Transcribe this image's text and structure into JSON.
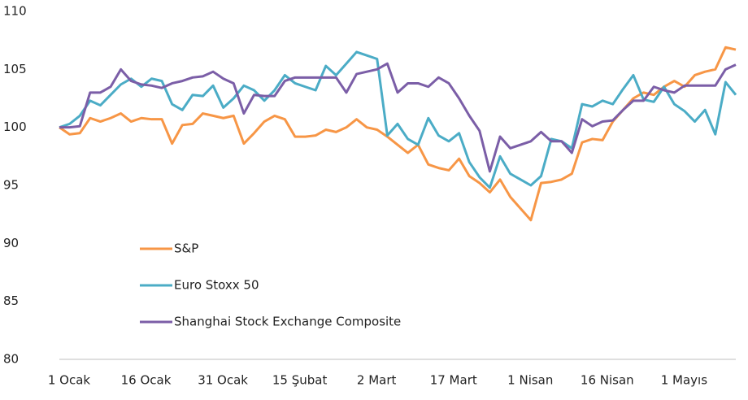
{
  "chart_data": {
    "type": "line",
    "x": [
      0,
      2,
      4,
      6,
      8,
      10,
      12,
      14,
      16,
      18,
      20,
      22,
      24,
      26,
      28,
      30,
      32,
      34,
      36,
      38,
      40,
      42,
      44,
      46,
      48,
      50,
      52,
      54,
      56,
      58,
      60,
      62,
      64,
      66,
      68,
      70,
      72,
      74,
      76,
      78,
      80,
      82,
      84,
      86,
      88,
      90,
      92,
      94,
      96,
      98,
      100,
      102,
      104,
      106,
      108,
      110,
      112,
      114,
      116,
      118,
      120,
      122,
      124,
      126,
      128,
      130,
      132
    ],
    "xlim": [
      0,
      132
    ],
    "xticks": [
      {
        "value": 0,
        "label": "1 Ocak"
      },
      {
        "value": 15,
        "label": "16 Ocak"
      },
      {
        "value": 30,
        "label": "31 Ocak"
      },
      {
        "value": 45,
        "label": "15 Şubat"
      },
      {
        "value": 60,
        "label": "2 Mart"
      },
      {
        "value": 75,
        "label": "17 Mart"
      },
      {
        "value": 90,
        "label": "1 Nisan"
      },
      {
        "value": 105,
        "label": "16 Nisan"
      },
      {
        "value": 120,
        "label": "1 Mayıs"
      }
    ],
    "ylim": [
      80,
      110
    ],
    "yticks": [
      80,
      85,
      90,
      95,
      100,
      105,
      110
    ],
    "legend": "lower left",
    "series": [
      {
        "name": "S&P",
        "color": "#f79646",
        "values": [
          100,
          99.4,
          99.5,
          100.8,
          100.5,
          100.8,
          101.2,
          100.5,
          100.8,
          100.7,
          100.7,
          98.6,
          100.2,
          100.3,
          101.2,
          101,
          100.8,
          101,
          98.6,
          99.5,
          100.5,
          101,
          100.7,
          99.2,
          99.2,
          99.3,
          99.8,
          99.6,
          100,
          100.7,
          100,
          99.8,
          99.2,
          98.5,
          97.8,
          98.5,
          96.8,
          96.5,
          96.3,
          97.3,
          95.8,
          95.2,
          94.4,
          95.5,
          94,
          93,
          92,
          95.2,
          95.3,
          95.5,
          96,
          98.7,
          99,
          98.9,
          100.5,
          101.5,
          102.5,
          103,
          102.8,
          103.5,
          104,
          103.5,
          104.5,
          104.8,
          105,
          106.9,
          106.7
        ]
      },
      {
        "name": "Euro Stoxx 50",
        "color": "#4bacc6",
        "values": [
          100,
          100.3,
          101,
          102.3,
          101.9,
          102.8,
          103.7,
          104.2,
          103.5,
          104.2,
          104,
          102,
          101.5,
          102.8,
          102.7,
          103.6,
          101.7,
          102.5,
          103.6,
          103.2,
          102.3,
          103.2,
          104.5,
          103.8,
          103.5,
          103.2,
          105.3,
          104.5,
          105.5,
          106.5,
          106.2,
          105.9,
          99.3,
          100.3,
          99,
          98.5,
          100.8,
          99.3,
          98.8,
          99.5,
          97,
          95.7,
          94.8,
          97.5,
          96,
          95.5,
          95,
          95.8,
          99,
          98.8,
          98.2,
          102,
          101.8,
          102.3,
          102,
          103.3,
          104.5,
          102.4,
          102.2,
          103.5,
          102,
          101.4,
          100.5,
          101.5,
          99.4,
          103.9,
          102.8
        ]
      },
      {
        "name": "Shanghai Stock Exchange Composite",
        "color": "#7b5ea7",
        "values": [
          100,
          100,
          100.1,
          103,
          103,
          103.5,
          105,
          104,
          103.7,
          103.6,
          103.4,
          103.8,
          104,
          104.3,
          104.4,
          104.8,
          104.2,
          103.8,
          101.2,
          102.8,
          102.7,
          102.7,
          104,
          104.3,
          104.3,
          104.3,
          104.3,
          104.3,
          103,
          104.6,
          104.8,
          105,
          105.5,
          103,
          103.8,
          103.8,
          103.5,
          104.3,
          103.8,
          102.5,
          101,
          99.7,
          96.2,
          99.2,
          98.2,
          98.5,
          98.8,
          99.6,
          98.8,
          98.8,
          97.8,
          100.7,
          100.1,
          100.5,
          100.6,
          101.5,
          102.3,
          102.3,
          103.5,
          103.2,
          103,
          103.6,
          103.6,
          103.6,
          103.6,
          105,
          105.4
        ]
      }
    ]
  }
}
